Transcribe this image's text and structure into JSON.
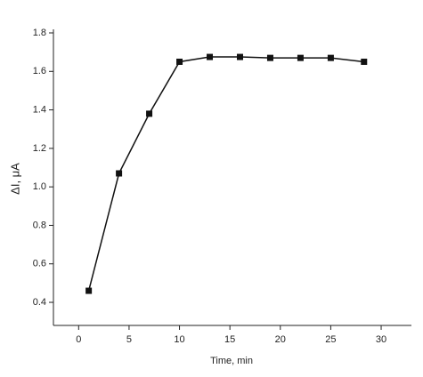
{
  "chart_data": {
    "type": "line",
    "x_label": "Time, min",
    "y_label": "ΔI, μA",
    "x": [
      1,
      4,
      7,
      10,
      13,
      16,
      19,
      22,
      25,
      28.3
    ],
    "series": [
      {
        "name": "ΔI",
        "color": "#111111",
        "values": [
          0.46,
          1.07,
          1.38,
          1.65,
          1.675,
          1.675,
          1.67,
          1.67,
          1.67,
          1.65
        ]
      }
    ],
    "xlim": [
      -2.5,
      33
    ],
    "ylim": [
      0.28,
      1.8
    ],
    "xticks": [
      0,
      5,
      10,
      15,
      20,
      25,
      30
    ],
    "yticks": [
      {
        "value": 0.4,
        "label": "0.4"
      },
      {
        "value": 0.6,
        "label": "0.6"
      },
      {
        "value": 0.8,
        "label": "0.8"
      },
      {
        "value": 1.0,
        "label": "1.0"
      },
      {
        "value": 1.2,
        "label": "1.2"
      },
      {
        "value": 1.4,
        "label": "1.4"
      },
      {
        "value": 1.6,
        "label": "1.6"
      },
      {
        "value": 1.8,
        "label": "1.8"
      }
    ],
    "markers": "square"
  }
}
